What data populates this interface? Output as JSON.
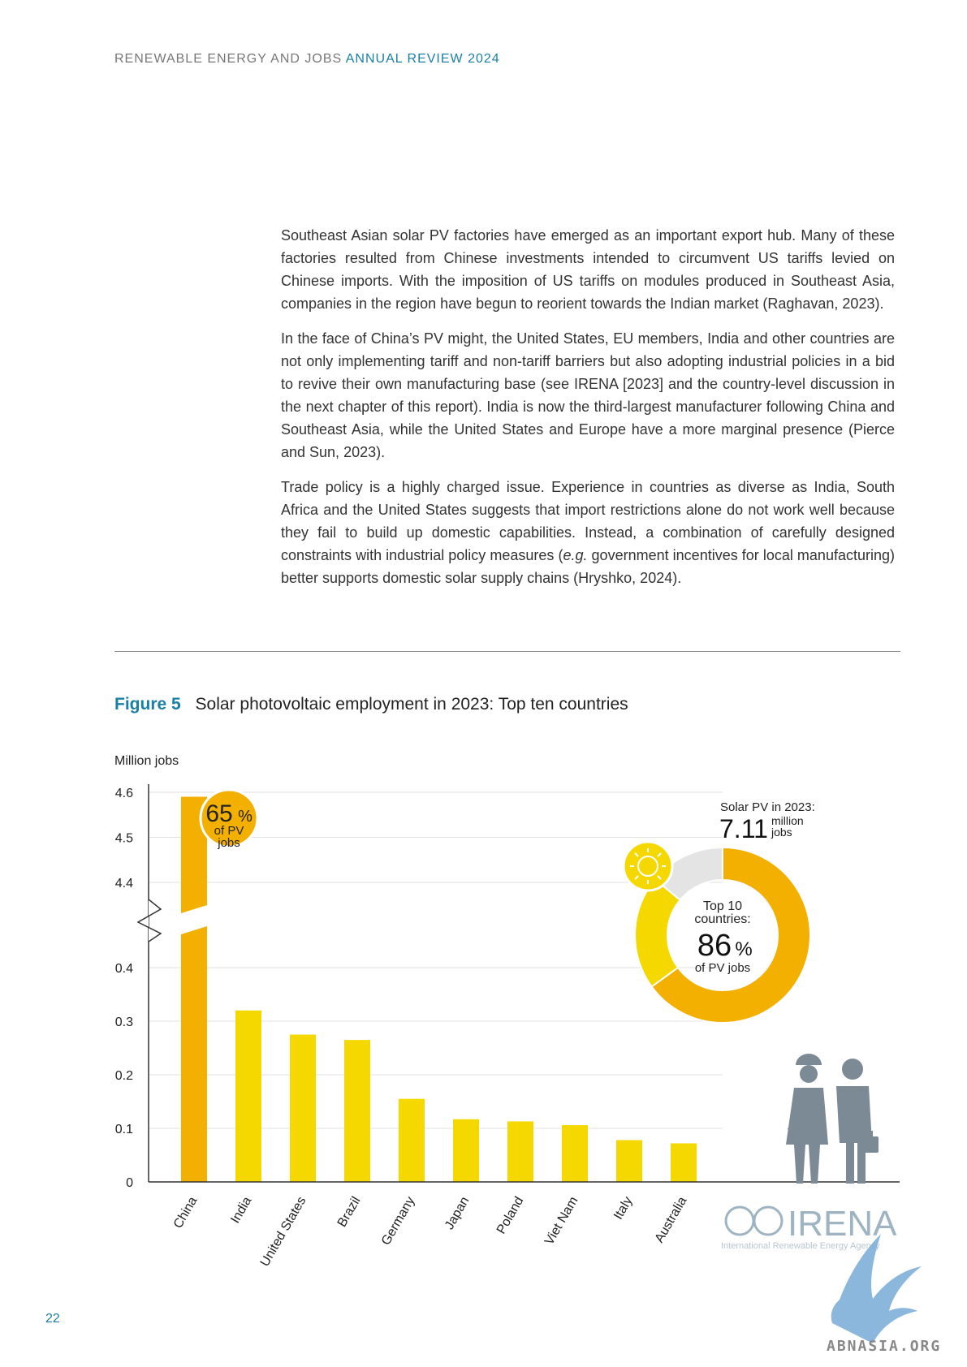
{
  "header": {
    "prefix": "RENEWABLE ENERGY AND JOBS",
    "accent": "ANNUAL REVIEW 2024"
  },
  "paragraphs": [
    "Southeast Asian solar PV factories have emerged as an important export hub. Many of these factories resulted from Chinese investments intended to circumvent US tariffs levied on Chinese imports. With the imposition of US tariffs on modules produced in Southeast Asia, companies in the region have begun to reorient towards the Indian market (Raghavan, 2023).",
    "In the face of China’s PV might, the United States, EU members, India and other countries are not only implementing tariff and non-tariff barriers but also adopting industrial policies in a bid to revive their own manufacturing base (see IRENA [2023] and the country-level discussion in the next chapter of this report). India is now the third-largest manufacturer following China and Southeast Asia, while the United States and Europe have a more marginal presence (Pierce and Sun, 2023)."
  ],
  "paragraph3": {
    "before": "Trade policy is a highly charged issue. Experience in countries as diverse as India, South Africa and the United States suggests that import restrictions alone do not work well because they fail to build up domestic capabilities. Instead, a combination of carefully designed constraints with industrial policy measures (",
    "italic": "e.g.",
    "after": " government incentives for local manufacturing) better supports domestic solar supply chains (Hryshko, 2024)."
  },
  "figure": {
    "label": "Figure 5",
    "title": "Solar photovoltaic employment in 2023: Top ten countries"
  },
  "chart_data": {
    "type": "bar",
    "ylabel": "Million jobs",
    "categories": [
      "China",
      "India",
      "United States",
      "Brazil",
      "Germany",
      "Japan",
      "Poland",
      "Viet Nam",
      "Italy",
      "Australia"
    ],
    "values": [
      4.59,
      0.32,
      0.275,
      0.265,
      0.155,
      0.117,
      0.113,
      0.106,
      0.078,
      0.072
    ],
    "y_ticks_lower": [
      "0",
      "0.1",
      "0.2",
      "0.3",
      "0.4"
    ],
    "y_ticks_upper": [
      "4.4",
      "4.5",
      "4.6"
    ],
    "axis_break": true,
    "china_badge": {
      "value": "65",
      "unit": "%",
      "line1": "of PV",
      "line2": "jobs"
    },
    "total": {
      "label": "Solar PV in 2023:",
      "value": "7.11",
      "unit1": "million",
      "unit2": "jobs"
    },
    "donut": {
      "top10_share": 86,
      "china_share": 65,
      "others_share": 21,
      "rest_share": 14,
      "label1": "Top 10",
      "label2": "countries:",
      "value": "86",
      "unit": "%",
      "sub": "of PV jobs"
    },
    "colors": {
      "china": "#f3b000",
      "other": "#f5d800",
      "rest": "#e4e4e4",
      "badge": "#f3b000"
    }
  },
  "logo": {
    "name": "IRENA",
    "subtitle": "International Renewable Energy Agency"
  },
  "page_number": "22",
  "watermark": "ABNASIA.ORG"
}
